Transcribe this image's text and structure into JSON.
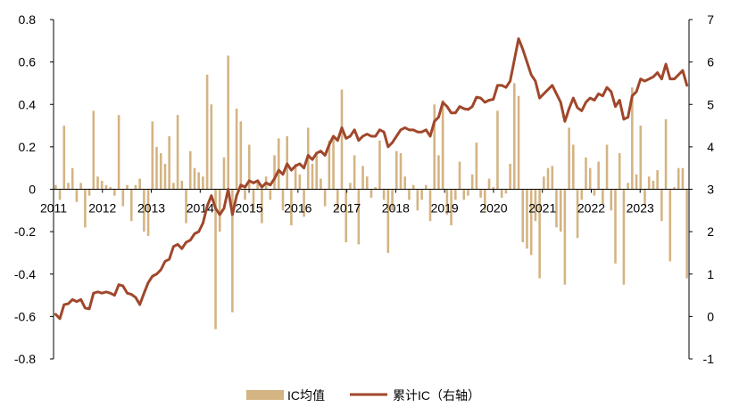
{
  "chart_data": {
    "type": "bar+line",
    "title": "",
    "xlabel": "",
    "ylabel": "",
    "y2label": "",
    "ylim": [
      -0.8,
      0.8
    ],
    "yticks": [
      -0.8,
      -0.6,
      -0.4,
      -0.2,
      0,
      0.2,
      0.4,
      0.6,
      0.8
    ],
    "y2lim": [
      -1,
      7
    ],
    "y2ticks": [
      -1,
      0,
      1,
      2,
      3,
      4,
      5,
      6,
      7
    ],
    "year_labels": [
      "2011",
      "2012",
      "2013",
      "2014",
      "2015",
      "2016",
      "2017",
      "2018",
      "2019",
      "2020",
      "2021",
      "2022",
      "2023"
    ],
    "grid": false,
    "legend_position": "bottom",
    "colors": {
      "bar": "#D4B483",
      "line": "#A0472B",
      "axis": "#000000"
    },
    "series": [
      {
        "name": "IC均值",
        "type": "bar",
        "axis": "left",
        "values": [
          0.02,
          -0.05,
          0.3,
          0.03,
          0.1,
          -0.06,
          0.03,
          -0.18,
          -0.03,
          0.37,
          0.06,
          0.04,
          0.02,
          0.01,
          -0.03,
          0.35,
          -0.08,
          0.02,
          -0.15,
          0.02,
          0.05,
          -0.2,
          -0.22,
          0.32,
          0.2,
          0.17,
          0.12,
          0.25,
          0.03,
          0.35,
          0.04,
          -0.16,
          0.18,
          0.1,
          0.08,
          0.06,
          0.54,
          0.4,
          -0.66,
          -0.2,
          0.15,
          0.63,
          -0.58,
          0.38,
          0.32,
          -0.05,
          0.21,
          -0.1,
          0.04,
          -0.16,
          0.06,
          -0.05,
          0.16,
          0.24,
          -0.1,
          0.25,
          -0.17,
          0.12,
          0.07,
          -0.13,
          0.29,
          0.12,
          0.17,
          0.05,
          -0.08,
          0.23,
          0.25,
          -0.1,
          0.47,
          -0.25,
          0.03,
          0.16,
          -0.26,
          0.11,
          0.06,
          -0.04,
          0.01,
          0.23,
          -0.05,
          -0.3,
          -0.1,
          0.18,
          0.17,
          0.06,
          -0.05,
          0.02,
          -0.1,
          -0.05,
          0.02,
          -0.15,
          0.4,
          0.16,
          0.42,
          -0.12,
          -0.17,
          -0.05,
          0.13,
          -0.05,
          -0.03,
          0.07,
          0.22,
          -0.04,
          -0.1,
          0.05,
          0.01,
          0.37,
          -0.04,
          -0.02,
          0.12,
          0.5,
          0.44,
          -0.25,
          -0.28,
          -0.31,
          -0.15,
          -0.42,
          0.06,
          0.1,
          0.11,
          -0.18,
          -0.2,
          -0.45,
          0.29,
          0.21,
          -0.23,
          -0.05,
          0.15,
          0.1,
          -0.03,
          0.13,
          -0.07,
          0.21,
          -0.1,
          -0.35,
          0.17,
          -0.45,
          0.03,
          0.48,
          0.07,
          0.3,
          -0.08,
          0.06,
          0.04,
          0.09,
          -0.15,
          0.33,
          -0.34,
          0.01,
          0.1,
          0.1,
          -0.42
        ]
      },
      {
        "name": "累计IC（右轴）",
        "type": "line",
        "axis": "right",
        "values": [
          0.05,
          -0.05,
          0.28,
          0.3,
          0.4,
          0.35,
          0.4,
          0.2,
          0.18,
          0.55,
          0.58,
          0.55,
          0.58,
          0.55,
          0.5,
          0.75,
          0.72,
          0.55,
          0.52,
          0.45,
          0.28,
          0.55,
          0.8,
          0.95,
          1.0,
          1.1,
          1.3,
          1.35,
          1.65,
          1.7,
          1.6,
          1.75,
          1.8,
          1.95,
          2.0,
          2.2,
          2.6,
          2.85,
          2.55,
          2.4,
          2.55,
          3.0,
          2.4,
          2.85,
          3.1,
          3.05,
          3.2,
          3.15,
          3.2,
          3.05,
          3.15,
          3.1,
          3.25,
          3.45,
          3.35,
          3.6,
          3.45,
          3.55,
          3.6,
          3.5,
          3.8,
          3.7,
          3.85,
          3.9,
          3.8,
          4.05,
          4.25,
          4.15,
          4.45,
          4.2,
          4.25,
          4.4,
          4.15,
          4.25,
          4.3,
          4.25,
          4.25,
          4.4,
          4.35,
          4.0,
          4.1,
          4.25,
          4.4,
          4.45,
          4.4,
          4.4,
          4.35,
          4.35,
          4.4,
          4.25,
          4.6,
          4.7,
          5.05,
          4.95,
          4.8,
          4.8,
          4.95,
          4.9,
          4.88,
          4.95,
          5.17,
          5.15,
          5.05,
          5.1,
          5.12,
          5.45,
          5.45,
          5.4,
          5.55,
          6.05,
          6.55,
          6.3,
          6.0,
          5.7,
          5.55,
          5.15,
          5.25,
          5.35,
          5.45,
          5.25,
          5.05,
          4.6,
          4.9,
          5.15,
          4.92,
          4.85,
          5.05,
          5.15,
          5.1,
          5.25,
          5.2,
          5.4,
          5.3,
          4.95,
          5.1,
          4.65,
          4.7,
          5.2,
          5.3,
          5.6,
          5.55,
          5.6,
          5.65,
          5.75,
          5.6,
          5.95,
          5.6,
          5.6,
          5.7,
          5.8,
          5.45
        ]
      }
    ]
  },
  "legend": {
    "bar_label": "IC均值",
    "line_label": "累计IC（右轴）"
  }
}
